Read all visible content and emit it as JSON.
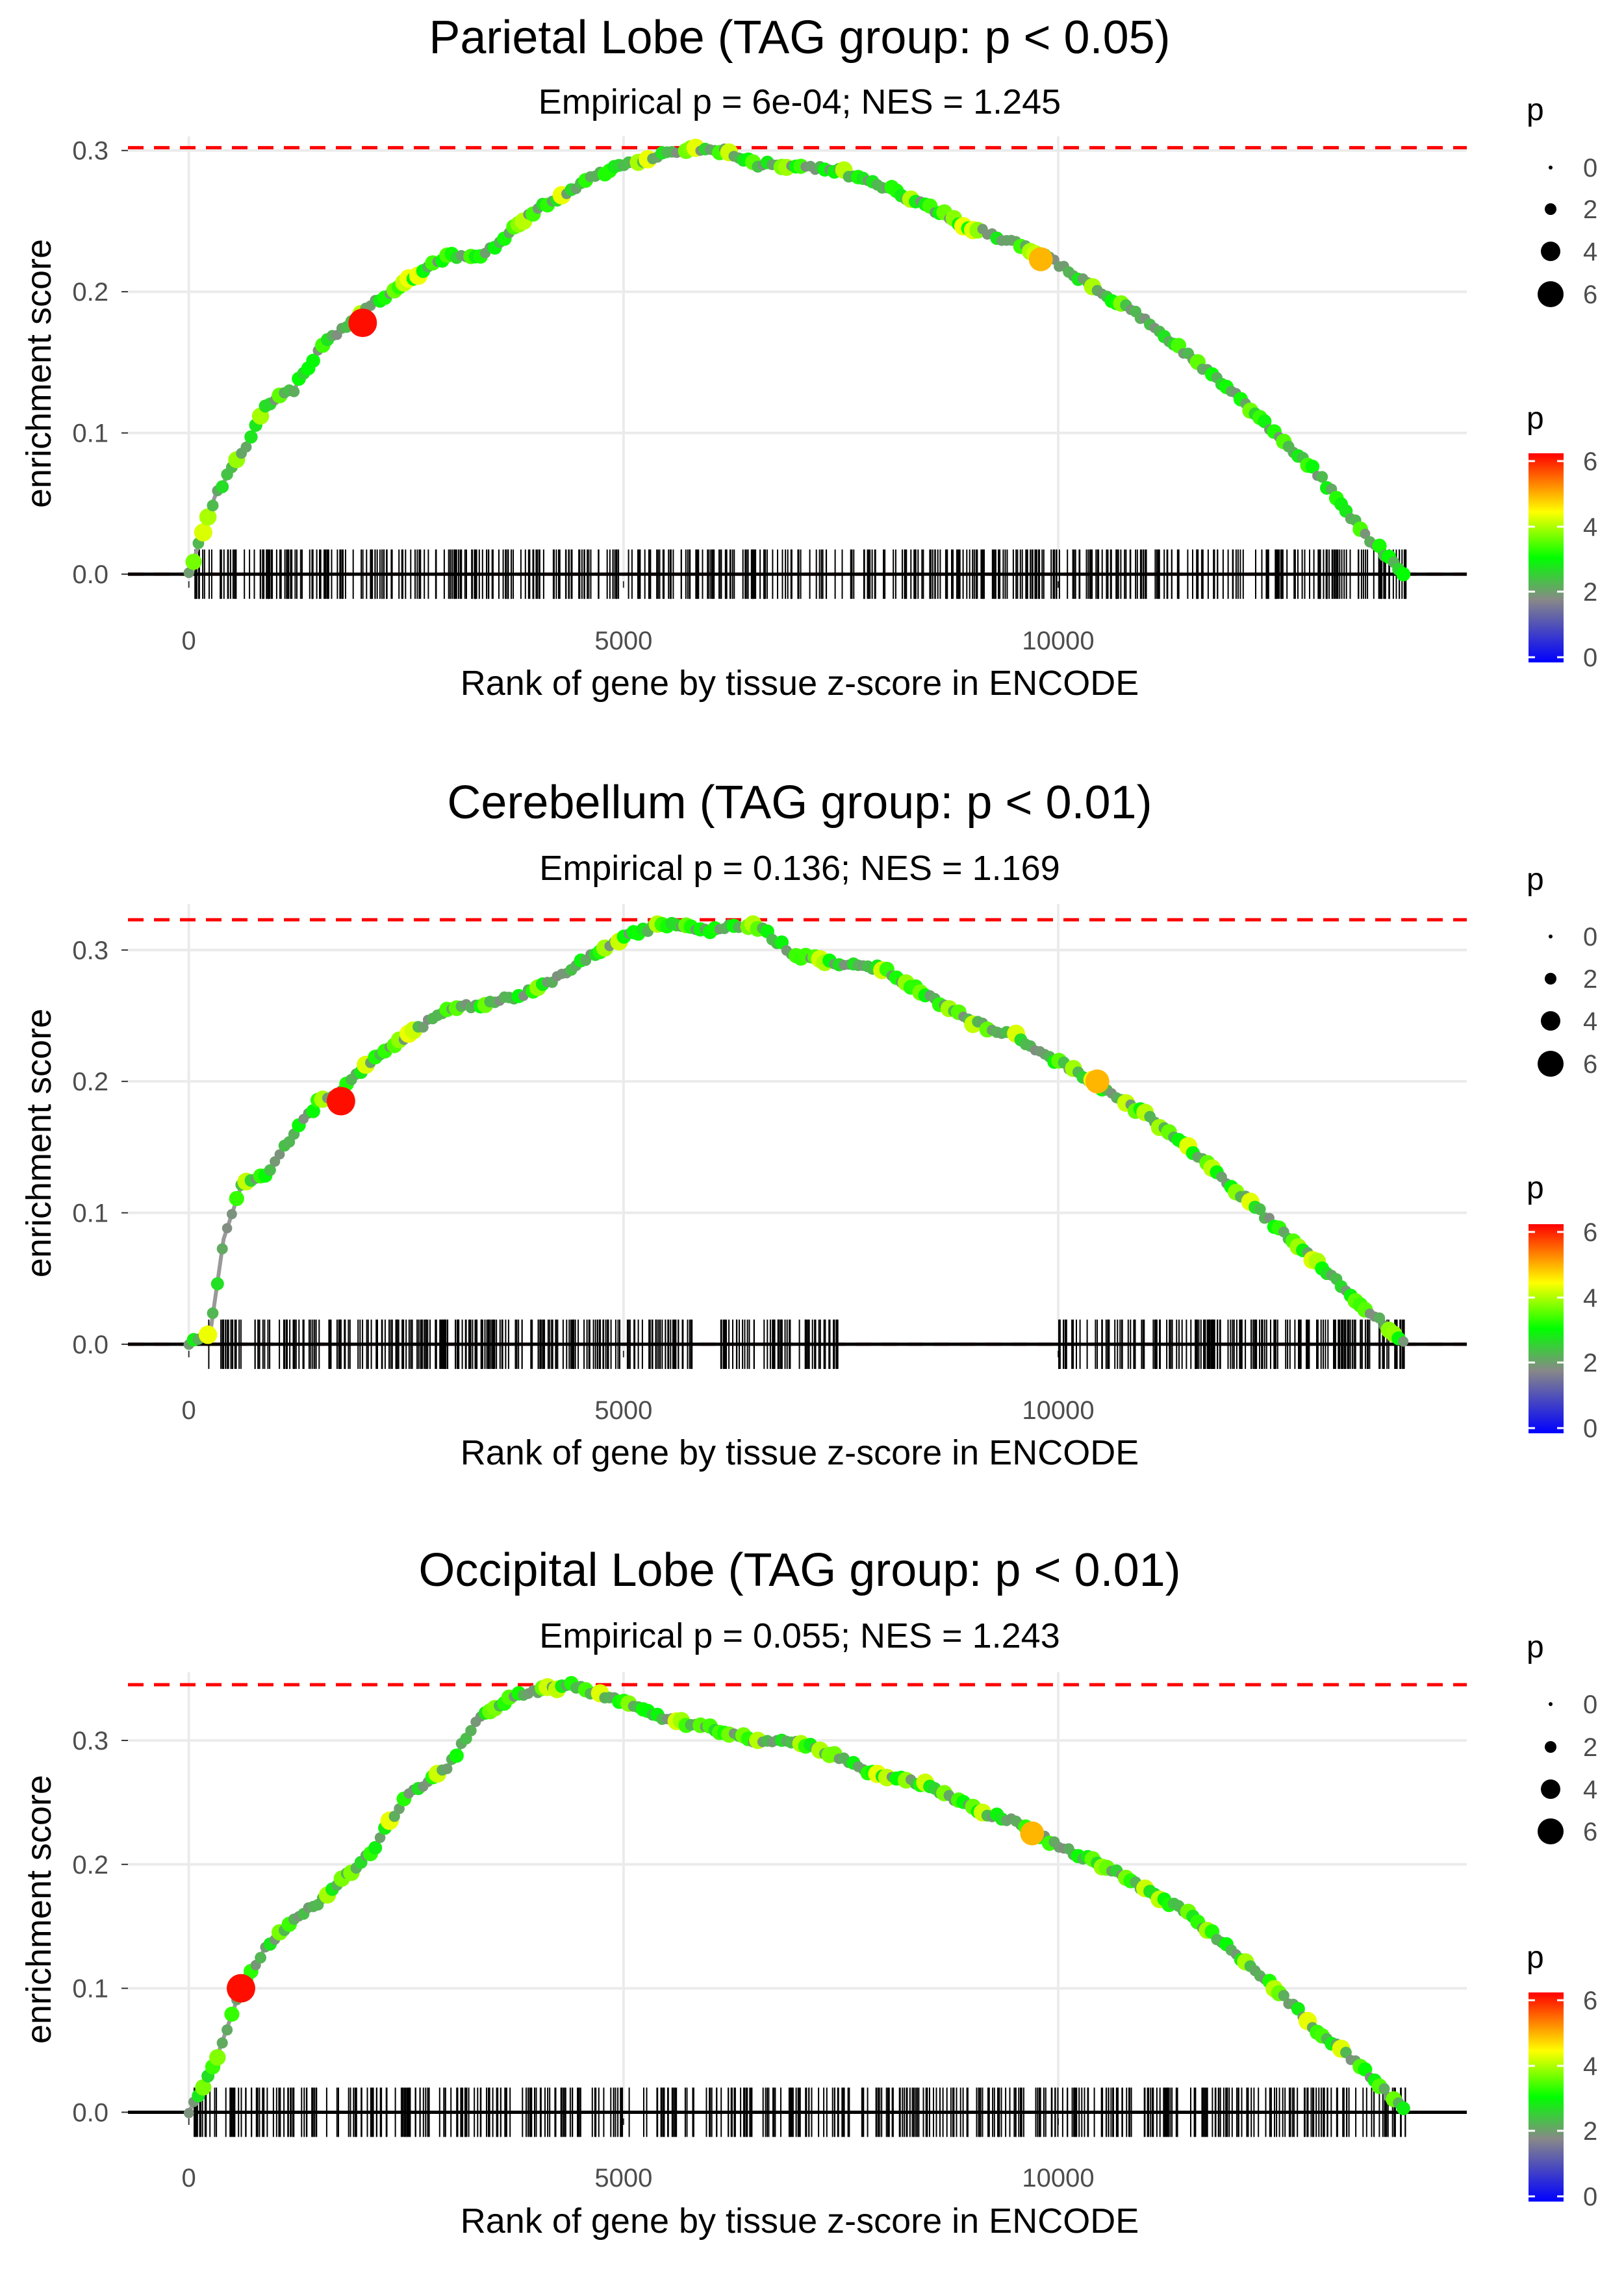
{
  "chart_data": [
    {
      "type": "line",
      "title": "Parietal Lobe (TAG group: p < 0.05)",
      "subtitle": "Empirical p = 6e-04; NES = 1.245",
      "xlabel": "Rank of gene by tissue z-score in ENCODE",
      "ylabel": "enrichment score",
      "xlim": [
        -700,
        14700
      ],
      "ylim": [
        -0.005,
        0.31
      ],
      "xticks": [
        0,
        5000,
        10000
      ],
      "xtick_labels": [
        "0",
        "5000",
        "10000"
      ],
      "yticks": [
        0,
        0.1,
        0.2,
        0.3
      ],
      "ytick_labels": [
        "0.0",
        "0.1",
        "0.2",
        "0.3"
      ],
      "max_es": 0.302,
      "x": [
        0,
        300,
        600,
        900,
        1200,
        1500,
        1800,
        2000,
        2300,
        2700,
        3000,
        3300,
        3600,
        3900,
        4200,
        4600,
        5000,
        5300,
        5600,
        6000,
        6200,
        6500,
        7000,
        7500,
        8000,
        8500,
        9000,
        9500,
        10000,
        10500,
        11000,
        11500,
        12000,
        12500,
        13000,
        13500,
        14000
      ],
      "y": [
        0.0,
        0.055,
        0.085,
        0.12,
        0.13,
        0.16,
        0.175,
        0.185,
        0.2,
        0.215,
        0.225,
        0.225,
        0.235,
        0.255,
        0.265,
        0.28,
        0.29,
        0.295,
        0.3,
        0.3,
        0.3,
        0.29,
        0.29,
        0.285,
        0.275,
        0.26,
        0.245,
        0.235,
        0.22,
        0.2,
        0.18,
        0.155,
        0.13,
        0.1,
        0.07,
        0.03,
        0.0
      ],
      "highlights": [
        {
          "x": 2000,
          "y": 0.178,
          "p": 6.4
        },
        {
          "x": 9800,
          "y": 0.223,
          "p": 5.2
        }
      ],
      "hit_ranges": [
        [
          50,
          14000
        ]
      ],
      "hit_count": 520
    },
    {
      "type": "line",
      "title": "Cerebellum (TAG group: p < 0.01)",
      "subtitle": "Empirical p = 0.136; NES = 1.169",
      "xlabel": "Rank of gene by tissue z-score in ENCODE",
      "ylabel": "enrichment score",
      "xlim": [
        -700,
        14700
      ],
      "ylim": [
        -0.005,
        0.335
      ],
      "xticks": [
        0,
        5000,
        10000
      ],
      "xtick_labels": [
        "0",
        "5000",
        "10000"
      ],
      "yticks": [
        0,
        0.1,
        0.2,
        0.3
      ],
      "ytick_labels": [
        "0.0",
        "0.1",
        "0.2",
        "0.3"
      ],
      "max_es": 0.323,
      "x": [
        0,
        250,
        400,
        600,
        900,
        1200,
        1500,
        1700,
        2000,
        2500,
        3000,
        3500,
        4000,
        4500,
        5000,
        5500,
        6000,
        6500,
        7000,
        7500,
        8000,
        8500,
        9000,
        9500,
        10000,
        10500,
        11000,
        11500,
        12000,
        12500,
        13000,
        13500,
        14000
      ],
      "y": [
        0.0,
        0.01,
        0.08,
        0.12,
        0.13,
        0.16,
        0.185,
        0.19,
        0.21,
        0.235,
        0.255,
        0.26,
        0.27,
        0.29,
        0.31,
        0.32,
        0.315,
        0.32,
        0.295,
        0.29,
        0.285,
        0.265,
        0.245,
        0.235,
        0.215,
        0.195,
        0.175,
        0.15,
        0.12,
        0.09,
        0.06,
        0.03,
        0.0
      ],
      "highlights": [
        {
          "x": 1750,
          "y": 0.185,
          "p": 6.4
        },
        {
          "x": 10450,
          "y": 0.2,
          "p": 5.2
        }
      ],
      "hit_ranges": [
        [
          200,
          5800
        ],
        [
          6100,
          7500
        ],
        [
          10000,
          14000
        ]
      ],
      "hit_count": 470
    },
    {
      "type": "line",
      "title": "Occipital Lobe (TAG group: p < 0.01)",
      "subtitle": "Empirical p = 0.055; NES = 1.243",
      "xlabel": "Rank of gene by tissue z-score in ENCODE",
      "ylabel": "enrichment score",
      "xlim": [
        -700,
        14700
      ],
      "ylim": [
        -0.005,
        0.355
      ],
      "xticks": [
        0,
        5000,
        10000
      ],
      "xtick_labels": [
        "0",
        "5000",
        "10000"
      ],
      "yticks": [
        0,
        0.1,
        0.2,
        0.3
      ],
      "ytick_labels": [
        "0.0",
        "0.1",
        "0.2",
        "0.3"
      ],
      "max_es": 0.345,
      "x": [
        0,
        300,
        600,
        900,
        1200,
        1500,
        1800,
        2100,
        2500,
        2800,
        3000,
        3300,
        3700,
        4000,
        4400,
        4800,
        5200,
        5600,
        6000,
        6500,
        7000,
        7500,
        8000,
        8500,
        9000,
        9500,
        10000,
        10500,
        11000,
        11500,
        12000,
        12500,
        13000,
        13500,
        14000
      ],
      "y": [
        0.0,
        0.04,
        0.1,
        0.135,
        0.155,
        0.17,
        0.19,
        0.21,
        0.255,
        0.27,
        0.28,
        0.315,
        0.335,
        0.34,
        0.345,
        0.335,
        0.325,
        0.315,
        0.31,
        0.3,
        0.3,
        0.285,
        0.27,
        0.265,
        0.245,
        0.235,
        0.215,
        0.2,
        0.18,
        0.16,
        0.13,
        0.1,
        0.065,
        0.035,
        0.0
      ],
      "highlights": [
        {
          "x": 600,
          "y": 0.1,
          "p": 6.4
        },
        {
          "x": 9700,
          "y": 0.225,
          "p": 5.2
        }
      ],
      "hit_ranges": [
        [
          50,
          14000
        ]
      ],
      "hit_count": 500
    }
  ],
  "legend": {
    "size_title": "p",
    "size_levels": [
      0,
      2,
      4,
      6
    ],
    "size_labels": [
      "0",
      "2",
      "4",
      "6"
    ],
    "color_title": "p",
    "color_labels": [
      "6",
      "4",
      "2",
      "0"
    ],
    "color_levels": [
      6,
      4,
      2,
      0
    ],
    "color_stops": [
      "#0000ff",
      "#888888",
      "#00ff00",
      "#ffff00",
      "#ff0000"
    ]
  },
  "colors": {
    "max_line": "#ff0000",
    "curve": "#999999",
    "zero_line": "#000000",
    "hit_tick": "#000000",
    "grid": "#ebebeb"
  }
}
